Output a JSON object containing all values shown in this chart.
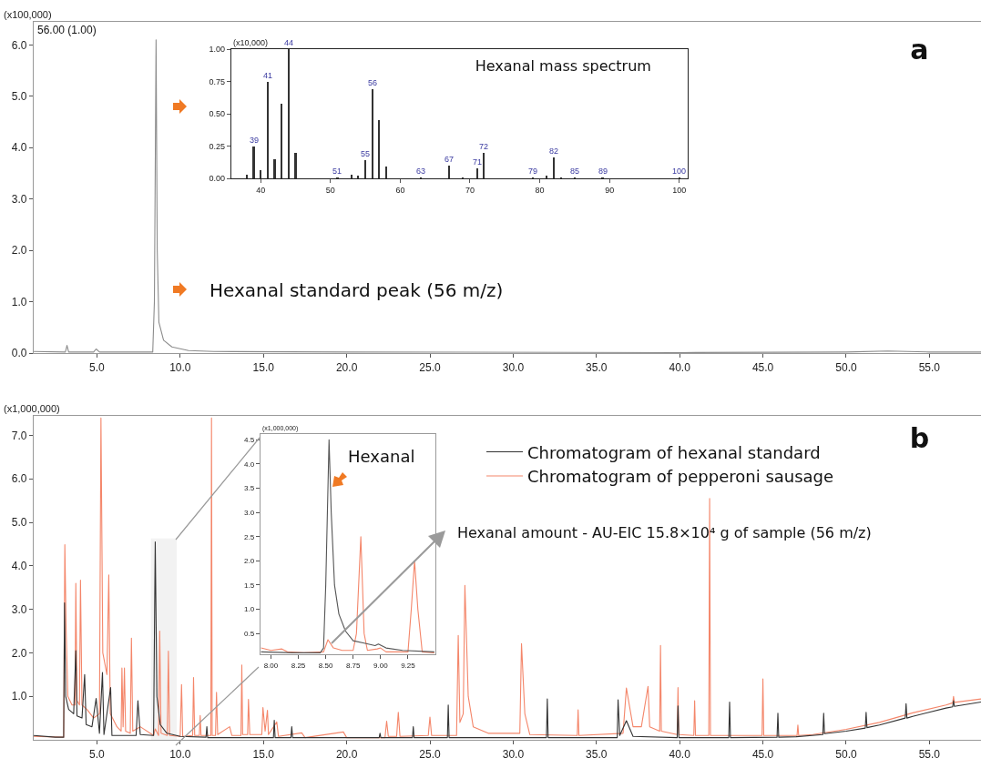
{
  "chart_data": [
    {
      "type": "line",
      "title": "a",
      "ylabel": "(x100,000)",
      "annotations": [
        "56.00 (1.00)",
        "Hexanal standard peak (56 m/z)"
      ],
      "series": [
        {
          "color": "#8c8c8c",
          "x": [
            1.2,
            3.1,
            3.2,
            3.3,
            4.8,
            4.95,
            5.15,
            8.35,
            8.45,
            8.55,
            8.62,
            8.72,
            9.0,
            9.5,
            10.5,
            12,
            20,
            40,
            50,
            52.5,
            55,
            58.1
          ],
          "values": [
            0.03,
            0.02,
            0.15,
            0.02,
            0.02,
            0.08,
            0.02,
            0.02,
            1.0,
            6.1,
            2.0,
            0.6,
            0.25,
            0.12,
            0.05,
            0.03,
            0.02,
            0.01,
            0.02,
            0.04,
            0.02,
            0.02
          ]
        }
      ],
      "xlim": [
        1.2,
        58.1
      ],
      "xticks": [
        {
          "value": 5,
          "label": "5.0"
        },
        {
          "value": 10,
          "label": "10.0"
        },
        {
          "value": 15,
          "label": "15.0"
        },
        {
          "value": 20,
          "label": "20.0"
        },
        {
          "value": 25,
          "label": "25.0"
        },
        {
          "value": 30,
          "label": "30.0"
        },
        {
          "value": 35,
          "label": "35.0"
        },
        {
          "value": 40,
          "label": "40.0"
        },
        {
          "value": 45,
          "label": "45.0"
        },
        {
          "value": 50,
          "label": "50.0"
        },
        {
          "value": 55,
          "label": "55.0"
        }
      ],
      "ylim": [
        0,
        6.45
      ],
      "yticks": [
        {
          "value": 0,
          "label": "0.0"
        },
        {
          "value": 1,
          "label": "1.0"
        },
        {
          "value": 2,
          "label": "2.0"
        },
        {
          "value": 3,
          "label": "3.0"
        },
        {
          "value": 4,
          "label": "4.0"
        },
        {
          "value": 5,
          "label": "5.0"
        },
        {
          "value": 6,
          "label": "6.0"
        }
      ],
      "marker": "none",
      "line_style": "solid"
    },
    {
      "type": "bar",
      "title": "Hexanal mass spectrum",
      "ylabel": "(x10,000)",
      "x": [
        38,
        39,
        40,
        41,
        42,
        43,
        44,
        45,
        51,
        53,
        54,
        55,
        56,
        57,
        58,
        63,
        67,
        69,
        71,
        72,
        79,
        81,
        82,
        83,
        85,
        89,
        100
      ],
      "values": [
        0.03,
        0.25,
        0.06,
        0.75,
        0.15,
        0.58,
        1.0,
        0.2,
        0.01,
        0.03,
        0.02,
        0.14,
        0.69,
        0.45,
        0.09,
        0.01,
        0.1,
        0.01,
        0.08,
        0.2,
        0.01,
        0.02,
        0.16,
        0.01,
        0.01,
        0.01,
        0.01
      ],
      "color": "#333333",
      "annotations": [
        {
          "text": "39",
          "x": 39,
          "y": 0.25
        },
        {
          "text": "41",
          "x": 41,
          "y": 0.75
        },
        {
          "text": "44",
          "x": 44,
          "y": 1.0
        },
        {
          "text": "51",
          "x": 51,
          "y": 0.01
        },
        {
          "text": "55",
          "x": 55,
          "y": 0.14
        },
        {
          "text": "56",
          "x": 56,
          "y": 0.69
        },
        {
          "text": "63",
          "x": 63,
          "y": 0.01
        },
        {
          "text": "67",
          "x": 67,
          "y": 0.1
        },
        {
          "text": "71",
          "x": 71,
          "y": 0.08
        },
        {
          "text": "72",
          "x": 72,
          "y": 0.2
        },
        {
          "text": "79",
          "x": 79,
          "y": 0.01
        },
        {
          "text": "82",
          "x": 82,
          "y": 0.16
        },
        {
          "text": "85",
          "x": 85,
          "y": 0.01
        },
        {
          "text": "89",
          "x": 89,
          "y": 0.01
        },
        {
          "text": "100",
          "x": 100,
          "y": 0.01
        }
      ],
      "xlim": [
        35.8,
        101.2
      ],
      "xticks": [
        40,
        50,
        60,
        70,
        80,
        90,
        100
      ],
      "ylim": [
        0,
        1.0
      ],
      "yticks": [
        {
          "value": 0,
          "label": "0.00"
        },
        {
          "value": 0.25,
          "label": "0.25"
        },
        {
          "value": 0.5,
          "label": "0.50"
        },
        {
          "value": 0.75,
          "label": "0.75"
        },
        {
          "value": 1,
          "label": "1.00"
        }
      ]
    },
    {
      "type": "line",
      "title": "b",
      "ylabel": "(x1,000,000)",
      "annotations": [
        "Hexanal amount - AU-EIC 15.8×10⁴ g of sample (56 m/z)"
      ],
      "series": [
        {
          "name": "Chromatogram of hexanal standard",
          "color": "#333333",
          "x": [
            1.2,
            2.5,
            3.0,
            3.05,
            3.12,
            3.3,
            3.6,
            3.73,
            3.8,
            4.1,
            4.26,
            4.35,
            4.7,
            4.95,
            5.15,
            5.33,
            5.42,
            5.82,
            5.9,
            7.35,
            7.46,
            7.6,
            8.4,
            8.5,
            8.6,
            8.8,
            9.2,
            10.0,
            11.55,
            11.6,
            11.65,
            15.6,
            15.65,
            15.7,
            16.65,
            16.7,
            16.75,
            21.95,
            22.0,
            22.05,
            23.95,
            24.0,
            24.05,
            26.05,
            26.1,
            26.15,
            32.0,
            32.05,
            32.1,
            36.25,
            36.3,
            36.4,
            36.8,
            37.2,
            39.85,
            39.9,
            39.95,
            42.95,
            43.0,
            43.05,
            45.85,
            45.9,
            45.95,
            47.0,
            48.6,
            48.65,
            48.7,
            50.0,
            51.15,
            51.2,
            51.25,
            52.0,
            53.55,
            53.6,
            53.65,
            54.0,
            56.0,
            56.4,
            56.45,
            56.5,
            58.1
          ],
          "values": [
            0.1,
            0.06,
            0.06,
            3.15,
            1.0,
            0.7,
            0.6,
            2.05,
            0.55,
            0.5,
            1.5,
            0.35,
            0.3,
            0.95,
            0.15,
            1.55,
            0.12,
            1.2,
            0.1,
            0.1,
            0.9,
            0.12,
            0.1,
            4.55,
            1.0,
            0.35,
            0.15,
            0.08,
            0.06,
            0.3,
            0.05,
            0.05,
            0.45,
            0.05,
            0.05,
            0.3,
            0.05,
            0.05,
            0.15,
            0.05,
            0.05,
            0.3,
            0.05,
            0.05,
            0.8,
            0.05,
            0.05,
            0.94,
            0.05,
            0.05,
            0.92,
            0.1,
            0.44,
            0.08,
            0.05,
            0.78,
            0.05,
            0.05,
            0.87,
            0.05,
            0.06,
            0.61,
            0.06,
            0.07,
            0.12,
            0.61,
            0.14,
            0.2,
            0.27,
            0.63,
            0.28,
            0.34,
            0.5,
            0.83,
            0.5,
            0.54,
            0.73,
            0.76,
            0.9,
            0.77,
            0.87
          ]
        },
        {
          "name": "Chromatogram of pepperoni sausage",
          "color": "#f4866a",
          "x": [
            1.2,
            3.0,
            3.07,
            3.15,
            3.25,
            3.5,
            3.68,
            3.73,
            3.8,
            3.95,
            4.01,
            4.1,
            4.4,
            4.8,
            5.15,
            5.24,
            5.35,
            5.6,
            5.71,
            5.8,
            6.2,
            6.45,
            6.5,
            6.57,
            6.65,
            6.72,
            7.0,
            7.07,
            7.15,
            7.6,
            8.4,
            8.5,
            8.7,
            8.77,
            8.85,
            9.22,
            9.29,
            9.36,
            10.0,
            10.08,
            10.15,
            10.75,
            10.8,
            10.87,
            11.15,
            11.2,
            11.25,
            11.84,
            11.88,
            11.92,
            12.12,
            12.18,
            12.25,
            12.97,
            13.1,
            13.65,
            13.7,
            13.75,
            14.05,
            14.1,
            14.18,
            14.9,
            14.97,
            15.1,
            15.24,
            15.3,
            15.8,
            15.9,
            17.3,
            17.5,
            19.8,
            20.0,
            22.3,
            22.4,
            22.5,
            23.0,
            23.1,
            23.2,
            24.9,
            25.0,
            25.1,
            26.6,
            26.7,
            26.8,
            27.0,
            27.1,
            27.3,
            27.6,
            28.5,
            30.4,
            30.5,
            30.7,
            31.0,
            33.85,
            33.9,
            33.95,
            36.6,
            36.8,
            37.2,
            37.7,
            38.1,
            38.2,
            38.8,
            38.85,
            38.9,
            39.85,
            39.9,
            39.95,
            40.85,
            40.9,
            40.95,
            41.75,
            41.8,
            41.85,
            44.95,
            45.0,
            45.05,
            47.05,
            47.1,
            47.15,
            48.0,
            50.0,
            52.0,
            54.0,
            56.0,
            56.4,
            56.45,
            56.5,
            58.1
          ],
          "values": [
            0.08,
            0.06,
            4.49,
            2.49,
            1.0,
            0.8,
            0.8,
            3.6,
            0.9,
            0.8,
            3.67,
            0.8,
            0.7,
            0.5,
            0.6,
            7.4,
            2.0,
            1.5,
            3.79,
            0.6,
            0.3,
            0.2,
            1.65,
            0.3,
            1.65,
            0.2,
            0.15,
            2.34,
            0.2,
            0.3,
            0.1,
            0.25,
            0.1,
            2.5,
            0.15,
            0.1,
            2.04,
            0.1,
            0.08,
            1.27,
            0.08,
            0.1,
            1.43,
            0.1,
            0.1,
            0.56,
            0.1,
            0.1,
            7.4,
            0.1,
            0.1,
            1.09,
            0.12,
            0.3,
            0.1,
            0.1,
            1.72,
            0.12,
            0.12,
            0.93,
            0.12,
            0.12,
            0.74,
            0.2,
            0.68,
            0.12,
            0.41,
            0.08,
            0.16,
            0.05,
            0.18,
            0.05,
            0.05,
            0.43,
            0.08,
            0.08,
            0.63,
            0.08,
            0.1,
            0.52,
            0.1,
            0.1,
            2.4,
            0.4,
            0.6,
            3.55,
            1.0,
            0.3,
            0.15,
            0.15,
            2.21,
            0.6,
            0.12,
            0.1,
            0.69,
            0.1,
            0.15,
            1.19,
            0.3,
            0.3,
            1.23,
            0.3,
            0.2,
            2.17,
            0.2,
            0.12,
            1.2,
            0.12,
            0.1,
            0.9,
            0.1,
            0.1,
            5.55,
            0.1,
            0.1,
            1.4,
            0.1,
            0.1,
            0.34,
            0.1,
            0.12,
            0.24,
            0.4,
            0.62,
            0.8,
            0.85,
            1.0,
            0.86,
            0.94
          ]
        }
      ],
      "xlim": [
        1.2,
        58.1
      ],
      "xticks": [
        {
          "value": 5,
          "label": "5.0"
        },
        {
          "value": 10,
          "label": "10.0"
        },
        {
          "value": 15,
          "label": "15.0"
        },
        {
          "value": 20,
          "label": "20.0"
        },
        {
          "value": 25,
          "label": "25.0"
        },
        {
          "value": 30,
          "label": "30.0"
        },
        {
          "value": 35,
          "label": "35.0"
        },
        {
          "value": 40,
          "label": "40.0"
        },
        {
          "value": 45,
          "label": "45.0"
        },
        {
          "value": 50,
          "label": "50.0"
        },
        {
          "value": 55,
          "label": "55.0"
        }
      ],
      "ylim": [
        0,
        7.45
      ],
      "yticks": [
        {
          "value": 1,
          "label": "1.0"
        },
        {
          "value": 2,
          "label": "2.0"
        },
        {
          "value": 3,
          "label": "3.0"
        },
        {
          "value": 4,
          "label": "4.0"
        },
        {
          "value": 5,
          "label": "5.0"
        },
        {
          "value": 6,
          "label": "6.0"
        },
        {
          "value": 7,
          "label": "7.0"
        }
      ],
      "bands": [
        {
          "axis": "x",
          "from": 8.28,
          "to": 9.76,
          "color": "#9a9a9a"
        }
      ],
      "legend": "top right",
      "marker": "none",
      "line_style": "solid"
    },
    {
      "type": "line",
      "ylabel": "(x1,000,000)",
      "annotations": [
        "Hexanal"
      ],
      "series": [
        {
          "color": "#555555",
          "x": [
            7.91,
            8.2,
            8.45,
            8.48,
            8.5,
            8.53,
            8.55,
            8.58,
            8.62,
            8.68,
            8.75,
            8.85,
            8.95,
            8.98,
            9.05,
            9.2,
            9.49
          ],
          "values": [
            0.12,
            0.1,
            0.1,
            0.2,
            1.5,
            4.5,
            3.0,
            1.5,
            0.9,
            0.55,
            0.35,
            0.3,
            0.25,
            0.28,
            0.2,
            0.15,
            0.12
          ]
        },
        {
          "color": "#f4866a",
          "x": [
            7.91,
            8.0,
            8.1,
            8.15,
            8.3,
            8.48,
            8.52,
            8.57,
            8.65,
            8.75,
            8.78,
            8.82,
            8.85,
            8.88,
            8.97,
            9.0,
            9.05,
            9.25,
            9.28,
            9.31,
            9.34,
            9.38,
            9.49
          ],
          "values": [
            0.2,
            0.15,
            0.18,
            0.12,
            0.1,
            0.12,
            0.37,
            0.2,
            0.15,
            0.15,
            0.5,
            2.5,
            0.5,
            0.15,
            0.18,
            0.2,
            0.12,
            0.12,
            1.0,
            2.0,
            1.0,
            0.12,
            0.1
          ]
        }
      ],
      "xlim": [
        7.905,
        9.5
      ],
      "xticks": [
        {
          "value": 8,
          "label": "8.00"
        },
        {
          "value": 8.25,
          "label": "8.25"
        },
        {
          "value": 8.5,
          "label": "8.50"
        },
        {
          "value": 8.75,
          "label": "8.75"
        },
        {
          "value": 9,
          "label": "9.00"
        },
        {
          "value": 9.25,
          "label": "9.25"
        }
      ],
      "ylim": [
        0.07,
        4.62
      ],
      "yticks": [
        0.5,
        {
          "value": 1,
          "label": "1.0"
        },
        1.5,
        {
          "value": 2,
          "label": "2.0"
        },
        2.5,
        {
          "value": 3,
          "label": "3.0"
        },
        3.5,
        {
          "value": 4,
          "label": "4.0"
        },
        4.5
      ],
      "marker": "none",
      "line_style": "solid"
    }
  ]
}
